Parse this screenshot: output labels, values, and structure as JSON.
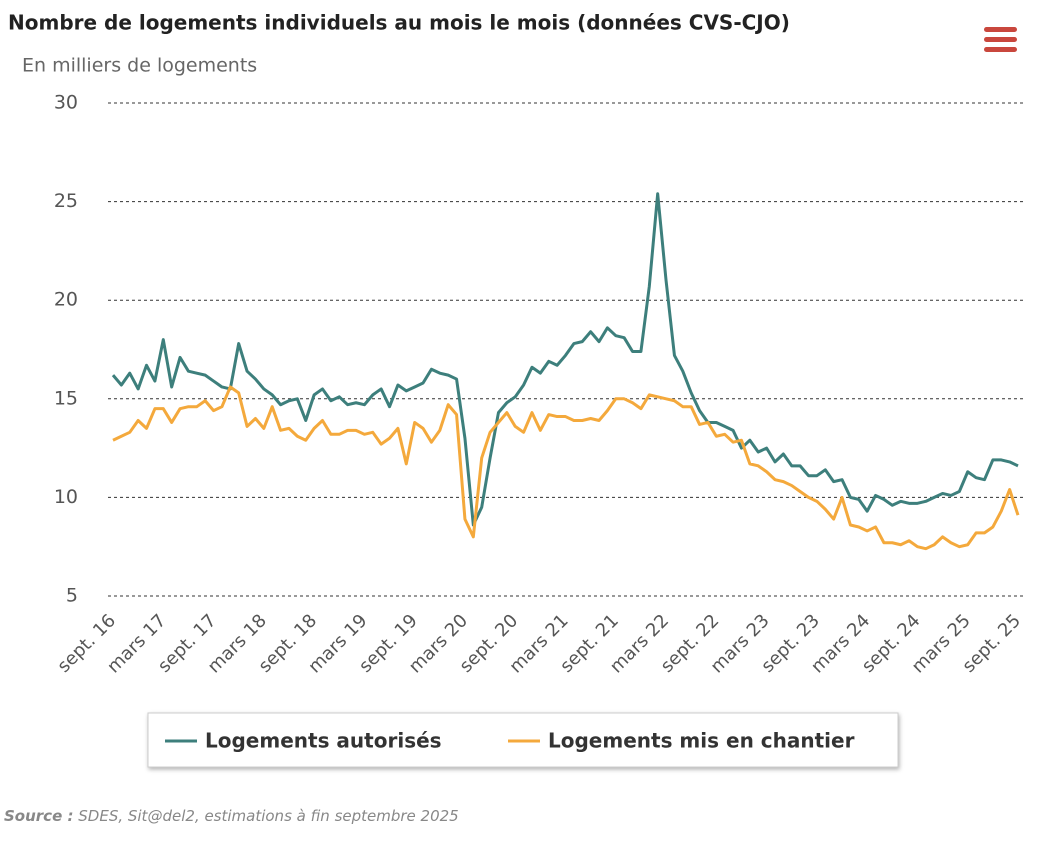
{
  "chart_data": {
    "type": "line",
    "title": "Nombre de logements individuels au mois le mois (données CVS-CJO)",
    "subtitle": "En milliers de logements",
    "source_label": "Source :",
    "source_text": "SDES, Sit@del2, estimations à fin septembre 2025",
    "categories": [
      "sept. 16",
      null,
      null,
      null,
      null,
      null,
      "mars 17",
      null,
      null,
      null,
      null,
      null,
      "sept. 17",
      null,
      null,
      null,
      null,
      null,
      "mars 18",
      null,
      null,
      null,
      null,
      null,
      "sept. 18",
      null,
      null,
      null,
      null,
      null,
      "mars 19",
      null,
      null,
      null,
      null,
      null,
      "sept. 19",
      null,
      null,
      null,
      null,
      null,
      "mars 20",
      null,
      null,
      null,
      null,
      null,
      "sept. 20",
      null,
      null,
      null,
      null,
      null,
      "mars 21",
      null,
      null,
      null,
      null,
      null,
      "sept. 21",
      null,
      null,
      null,
      null,
      null,
      "mars 22",
      null,
      null,
      null,
      null,
      null,
      "sept. 22",
      null,
      null,
      null,
      null,
      null,
      "mars 23",
      null,
      null,
      null,
      null,
      null,
      "sept. 23",
      null,
      null,
      null,
      null,
      null,
      "mars 24",
      null,
      null,
      null,
      null,
      null,
      "sept. 24",
      null,
      null,
      null,
      null,
      null,
      "mars 25",
      null,
      null,
      null,
      null,
      null,
      "sept. 25"
    ],
    "series": [
      {
        "name": "Logements autorisés",
        "color": "#3d7f7c",
        "values": [
          16.2,
          15.7,
          16.3,
          15.5,
          16.7,
          15.9,
          18.0,
          15.6,
          17.1,
          16.4,
          16.3,
          16.2,
          15.9,
          15.6,
          15.5,
          17.8,
          16.4,
          16.0,
          15.5,
          15.2,
          14.7,
          14.9,
          15.0,
          13.9,
          15.2,
          15.5,
          14.9,
          15.1,
          14.7,
          14.8,
          14.7,
          15.2,
          15.5,
          14.6,
          15.7,
          15.4,
          15.6,
          15.8,
          16.5,
          16.3,
          16.2,
          16.0,
          13.0,
          8.6,
          9.5,
          12.0,
          14.3,
          14.8,
          15.1,
          15.7,
          16.6,
          16.3,
          16.9,
          16.7,
          17.2,
          17.8,
          17.9,
          18.4,
          17.9,
          18.6,
          18.2,
          18.1,
          17.4,
          17.4,
          20.7,
          25.4,
          21.0,
          17.2,
          16.4,
          15.3,
          14.4,
          13.8,
          13.8,
          13.6,
          13.4,
          12.5,
          12.9,
          12.3,
          12.5,
          11.8,
          12.2,
          11.6,
          11.6,
          11.1,
          11.1,
          11.4,
          10.8,
          10.9,
          10.0,
          9.9,
          9.3,
          10.1,
          9.9,
          9.6,
          9.8,
          9.7,
          9.7,
          9.8,
          10.0,
          10.2,
          10.1,
          10.3,
          11.3,
          11.0,
          10.9,
          11.9,
          11.9,
          11.8,
          11.6
        ]
      },
      {
        "name": "Logements mis en chantier",
        "color": "#f4a93c",
        "values": [
          12.9,
          13.1,
          13.3,
          13.9,
          13.5,
          14.5,
          14.5,
          13.8,
          14.5,
          14.6,
          14.6,
          14.9,
          14.4,
          14.6,
          15.6,
          15.3,
          13.6,
          14.0,
          13.5,
          14.6,
          13.4,
          13.5,
          13.1,
          12.9,
          13.5,
          13.9,
          13.2,
          13.2,
          13.4,
          13.4,
          13.2,
          13.3,
          12.7,
          13.0,
          13.5,
          11.7,
          13.8,
          13.5,
          12.8,
          13.4,
          14.7,
          14.2,
          8.9,
          8.0,
          12.0,
          13.3,
          13.8,
          14.3,
          13.6,
          13.3,
          14.3,
          13.4,
          14.2,
          14.1,
          14.1,
          13.9,
          13.9,
          14.0,
          13.9,
          14.4,
          15.0,
          15.0,
          14.8,
          14.5,
          15.2,
          15.1,
          15.0,
          14.9,
          14.6,
          14.6,
          13.7,
          13.8,
          13.1,
          13.2,
          12.8,
          12.9,
          11.7,
          11.6,
          11.3,
          10.9,
          10.8,
          10.6,
          10.3,
          10.0,
          9.8,
          9.4,
          8.9,
          10.0,
          8.6,
          8.5,
          8.3,
          8.5,
          7.7,
          7.7,
          7.6,
          7.8,
          7.5,
          7.4,
          7.6,
          8.0,
          7.7,
          7.5,
          7.6,
          8.2,
          8.2,
          8.5,
          9.3,
          10.4,
          9.1
        ]
      }
    ],
    "ylim": [
      5,
      30
    ],
    "yticks": [
      5,
      10,
      15,
      20,
      25,
      30
    ],
    "grid": true
  }
}
